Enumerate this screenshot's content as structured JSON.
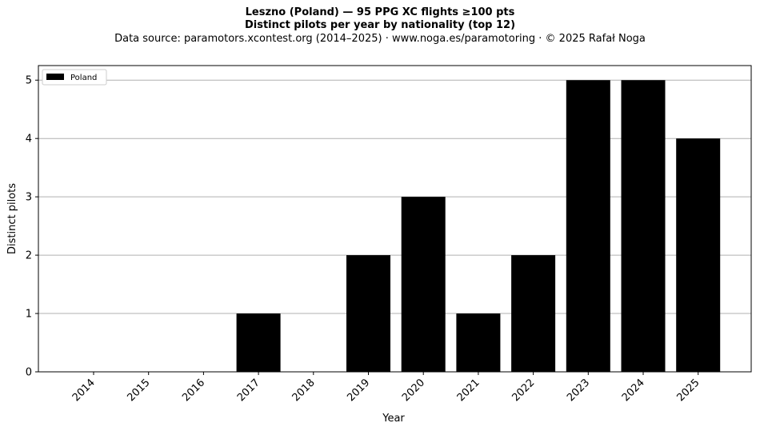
{
  "header": {
    "line1": "Leszno (Poland)  —  95 PPG XC flights ≥100 pts",
    "line2": "Distinct pilots per year by nationality (top 12)",
    "line3": "Data source: paramotors.xcontest.org (2014–2025)  ·  www.noga.es/paramotoring  ·  © 2025 Rafał Noga"
  },
  "chart_data": {
    "type": "bar",
    "title": "Leszno (Poland)  —  95 PPG XC flights ≥100 pts",
    "subtitle": "Distinct pilots per year by nationality (top 12)",
    "xlabel": "Year",
    "ylabel": "Distinct pilots",
    "categories": [
      "2014",
      "2015",
      "2016",
      "2017",
      "2018",
      "2019",
      "2020",
      "2021",
      "2022",
      "2023",
      "2024",
      "2025"
    ],
    "series": [
      {
        "name": "Poland",
        "values": [
          0,
          0,
          0,
          1,
          0,
          2,
          3,
          1,
          2,
          5,
          5,
          4
        ],
        "color": "#000000"
      }
    ],
    "ylim": [
      0,
      5.25
    ],
    "yticks": [
      0,
      1,
      2,
      3,
      4,
      5
    ],
    "grid": "horizontal",
    "legend_position": "top-left"
  }
}
